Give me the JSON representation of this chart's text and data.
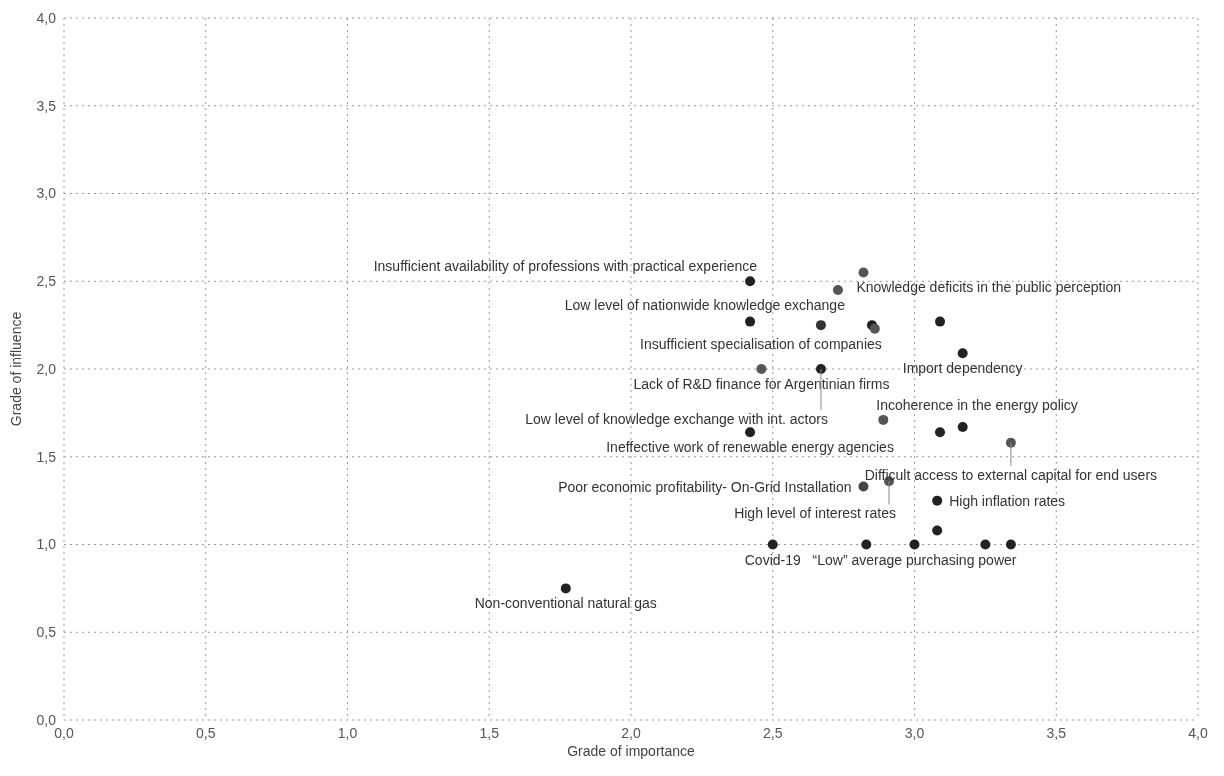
{
  "chart_data": {
    "type": "scatter",
    "xlabel": "Grade of importance",
    "ylabel": "Grade of influence",
    "xlim": [
      0,
      4
    ],
    "ylim": [
      0,
      4
    ],
    "xticks": [
      {
        "value": 0,
        "label": "0,0"
      },
      {
        "value": 0.5,
        "label": "0,5"
      },
      {
        "value": 1,
        "label": "1,0"
      },
      {
        "value": 1.5,
        "label": "1,5"
      },
      {
        "value": 2,
        "label": "2,0"
      },
      {
        "value": 2.5,
        "label": "2,5"
      },
      {
        "value": 3,
        "label": "3,0"
      },
      {
        "value": 3.5,
        "label": "3,5"
      },
      {
        "value": 4,
        "label": "4,0"
      }
    ],
    "yticks": [
      {
        "value": 0,
        "label": "0,0"
      },
      {
        "value": 0.5,
        "label": "0,5"
      },
      {
        "value": 1,
        "label": "1,0"
      },
      {
        "value": 1.5,
        "label": "1,5"
      },
      {
        "value": 2,
        "label": "2,0"
      },
      {
        "value": 2.5,
        "label": "2,5"
      },
      {
        "value": 3,
        "label": "3,0"
      },
      {
        "value": 3.5,
        "label": "3,5"
      },
      {
        "value": 4,
        "label": "4,0"
      }
    ],
    "grid": true,
    "legend": false,
    "marker": "circle",
    "x": [
      2.42,
      2.82,
      2.73,
      2.42,
      2.67,
      2.85,
      2.86,
      3.09,
      3.17,
      2.46,
      2.67,
      2.89,
      2.42,
      3.09,
      3.17,
      3.34,
      2.82,
      2.91,
      3.08,
      3.08,
      2.5,
      2.83,
      3.0,
      3.25,
      3.34,
      1.77
    ],
    "values": [
      2.5,
      2.55,
      2.45,
      2.27,
      2.25,
      2.25,
      2.23,
      2.27,
      2.09,
      2.0,
      2.0,
      1.71,
      1.64,
      1.64,
      1.67,
      1.58,
      1.33,
      1.36,
      1.25,
      1.08,
      1.0,
      1.0,
      1.0,
      1.0,
      1.0,
      0.75
    ],
    "colors": [
      "#222222",
      "#555555",
      "#555555",
      "#222222",
      "#333333",
      "#222222",
      "#555555",
      "#222222",
      "#222222",
      "#555555",
      "#222222",
      "#555555",
      "#222222",
      "#222222",
      "#222222",
      "#555555",
      "#444444",
      "#555555",
      "#222222",
      "#222222",
      "#222222",
      "#222222",
      "#222222",
      "#222222",
      "#222222",
      "#222222"
    ],
    "annotations": [
      {
        "text": "Knowledge deficits in the public perception",
        "x": 2.82,
        "y": 2.55
      },
      {
        "text": "Low level of nationwide knowledge exchange",
        "x": 2.73,
        "y": 2.45
      },
      {
        "text": "Insufficient availability of professions with practical experience",
        "x": 2.42,
        "y": 2.5
      },
      {
        "text": "Insufficient specialisation of companies",
        "x": 2.86,
        "y": 2.23
      },
      {
        "text": "Lack of R&D finance for Argentinian firms",
        "x": 2.46,
        "y": 2.0
      },
      {
        "text": "Low level of knowledge exchange with int. actors",
        "x": 2.67,
        "y": 2.0
      },
      {
        "text": "Import dependency",
        "x": 3.17,
        "y": 2.09
      },
      {
        "text": "Incoherence in the energy policy",
        "x": 2.89,
        "y": 1.71
      },
      {
        "text": "Ineffective work of renewable energy agencies",
        "x": 2.42,
        "y": 1.64
      },
      {
        "text": "Difficult access to external capital for end users",
        "x": 3.34,
        "y": 1.58
      },
      {
        "text": "High level of interest rates",
        "x": 2.91,
        "y": 1.36
      },
      {
        "text": "Poor economic profitability- On-Grid Installation",
        "x": 2.82,
        "y": 1.33
      },
      {
        "text": "High inflation rates",
        "x": 3.08,
        "y": 1.25
      },
      {
        "text": "Covid-19",
        "x": 2.5,
        "y": 1.0
      },
      {
        "text": "“Low” average purchasing power",
        "x": 3.0,
        "y": 1.0
      },
      {
        "text": "Non-conventional natural gas",
        "x": 1.77,
        "y": 0.75
      }
    ]
  }
}
